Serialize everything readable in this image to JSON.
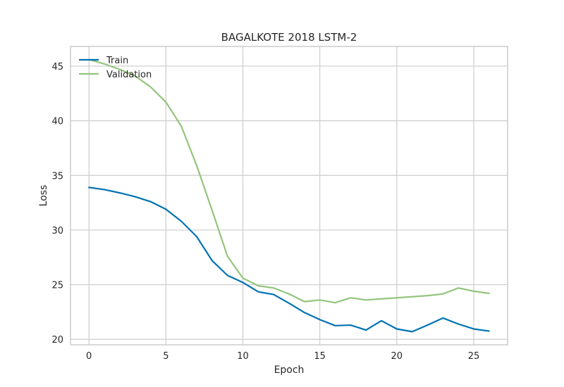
{
  "chart_data": {
    "type": "line",
    "title": "BAGALKOTE 2018 LSTM-2",
    "xlabel": "Epoch",
    "ylabel": "Loss",
    "xlim": [
      -1.2,
      27.2
    ],
    "ylim": [
      19.5,
      46.8
    ],
    "xticks": [
      0,
      5,
      10,
      15,
      20,
      25
    ],
    "yticks": [
      20,
      25,
      30,
      35,
      40,
      45
    ],
    "grid": true,
    "legend_position": "upper-left",
    "x": [
      0,
      1,
      2,
      3,
      4,
      5,
      6,
      7,
      8,
      9,
      10,
      11,
      12,
      13,
      14,
      15,
      16,
      17,
      18,
      19,
      20,
      21,
      22,
      23,
      24,
      25,
      26
    ],
    "series": [
      {
        "name": "Train",
        "color": "#0072b2",
        "values": [
          33.9,
          33.7,
          33.4,
          33.05,
          32.6,
          31.9,
          30.8,
          29.4,
          27.2,
          25.85,
          25.2,
          24.35,
          24.1,
          23.3,
          22.45,
          21.8,
          21.25,
          21.3,
          20.85,
          21.7,
          20.95,
          20.7,
          21.3,
          21.95,
          21.4,
          20.95,
          20.75
        ]
      },
      {
        "name": "Validation",
        "color": "#94c47d",
        "values": [
          45.6,
          45.2,
          44.7,
          44.1,
          43.1,
          41.7,
          39.5,
          35.9,
          31.8,
          27.6,
          25.6,
          24.9,
          24.7,
          24.15,
          23.45,
          23.6,
          23.35,
          23.8,
          23.6,
          23.7,
          23.8,
          23.9,
          24.0,
          24.15,
          24.7,
          24.4,
          24.2
        ]
      }
    ]
  }
}
